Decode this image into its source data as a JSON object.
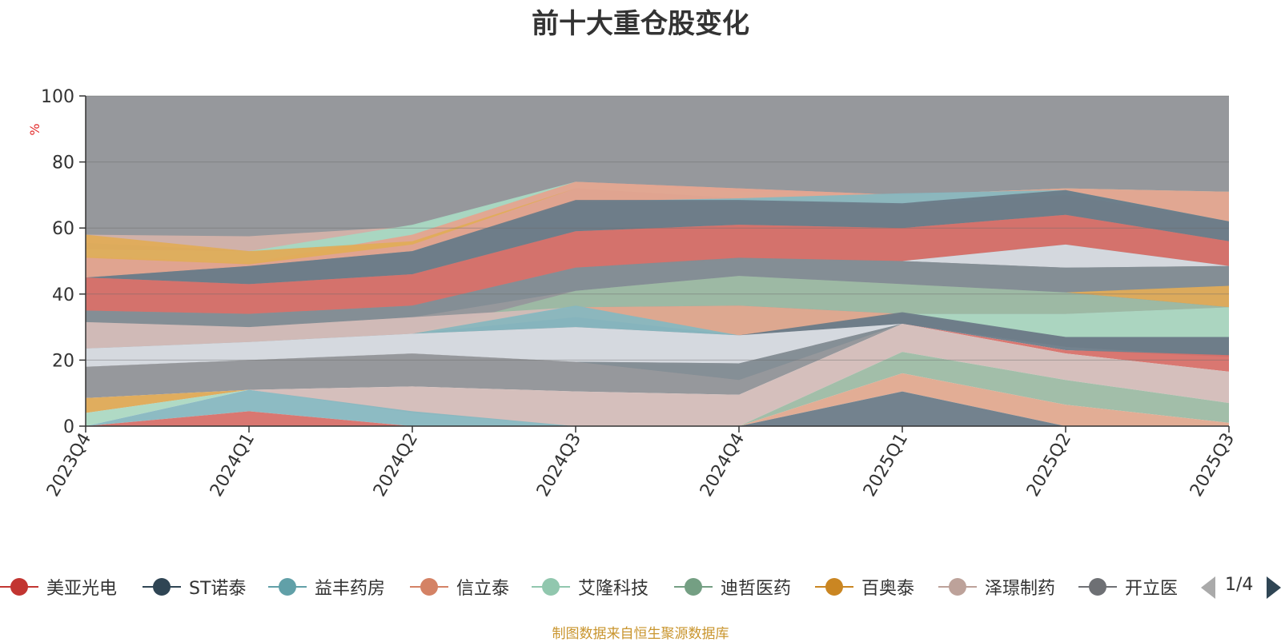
{
  "chart_data": {
    "type": "area",
    "title": "前十大重仓股变化",
    "ylabel": "%",
    "ylim": [
      0,
      100
    ],
    "yticks": [
      0,
      20,
      40,
      60,
      80,
      100
    ],
    "categories": [
      "2023Q4",
      "2024Q1",
      "2024Q2",
      "2024Q3",
      "2024Q4",
      "2025Q1",
      "2025Q2",
      "2025Q3"
    ],
    "grid": true,
    "legend_position": "bottom",
    "legend_page": "1/4",
    "areas": [
      {
        "color": "#909297",
        "lower": [
          18,
          20,
          22,
          19.5,
          14,
          31,
          24,
          21
        ],
        "upper": [
          100,
          100,
          100,
          100,
          100,
          100,
          100,
          100
        ]
      },
      {
        "color": "#d3b2aa",
        "lower": [
          55.5,
          53,
          56.5,
          73,
          70,
          69,
          71,
          70
        ],
        "upper": [
          58,
          57.5,
          60.5,
          74,
          72,
          70,
          72,
          71
        ]
      },
      {
        "color": "#a6d8c2",
        "lower": [
          51,
          49,
          55,
          72,
          69,
          68,
          70,
          62
        ],
        "upper": [
          53.5,
          53,
          61,
          74,
          71,
          70,
          72,
          71
        ]
      },
      {
        "color": "#e4a48f",
        "lower": [
          45,
          48.5,
          53,
          68,
          68,
          67,
          70,
          62
        ],
        "upper": [
          51.5,
          49.5,
          58,
          74,
          72,
          70,
          72,
          71
        ]
      },
      {
        "color": "#87b7c0",
        "lower": [
          45,
          48.5,
          53,
          68,
          68,
          67,
          70,
          62
        ],
        "upper": [
          45,
          48.5,
          53,
          68,
          69,
          70.5,
          71.5,
          62
        ]
      },
      {
        "color": "#e0ac58",
        "lower": [
          51,
          49,
          55,
          72,
          69,
          68,
          70,
          62
        ],
        "upper": [
          58,
          53,
          56,
          72,
          69,
          68,
          70,
          62
        ]
      },
      {
        "color": "#6c7b88",
        "lower": [
          45,
          43,
          46,
          59,
          61,
          60,
          64,
          56
        ],
        "upper": [
          45,
          48.5,
          53,
          68.5,
          68.5,
          67.5,
          71.5,
          62
        ]
      },
      {
        "color": "#d77069",
        "lower": [
          35,
          34,
          36.5,
          48,
          50.5,
          50,
          55,
          48.5
        ],
        "upper": [
          45,
          43,
          46,
          59,
          61,
          60,
          64,
          56
        ]
      },
      {
        "color": "#d7dbe2",
        "lower": [
          35,
          34,
          36.5,
          48,
          50.5,
          50,
          48,
          48.5
        ],
        "upper": [
          35,
          34,
          36.5,
          48,
          50.5,
          50,
          55,
          48.5
        ]
      },
      {
        "color": "#838d95",
        "lower": [
          31.5,
          30,
          33,
          41,
          45.5,
          43,
          40.5,
          36
        ],
        "upper": [
          35,
          34,
          36.5,
          48,
          51,
          50,
          48,
          48.5
        ]
      },
      {
        "color": "#e0ac58",
        "lower": [
          31.5,
          30,
          33,
          41,
          45.5,
          43,
          40.5,
          36
        ],
        "upper": [
          31.5,
          30,
          33,
          41,
          45.5,
          43,
          40.5,
          42.5
        ]
      },
      {
        "color": "#9dbaa4",
        "lower": [
          28,
          28,
          28,
          36,
          36.5,
          34,
          34,
          36
        ],
        "upper": [
          28,
          28,
          28,
          41,
          45.5,
          43,
          40.5,
          36
        ]
      },
      {
        "color": "#acd8c2",
        "lower": [
          28,
          28,
          28,
          36,
          36.5,
          34,
          27,
          27
        ],
        "upper": [
          28,
          28,
          28,
          36,
          36.5,
          34,
          34,
          36
        ]
      },
      {
        "color": "#d3bcb8",
        "lower": [
          23.5,
          25.5,
          28,
          36,
          36.5,
          34,
          34,
          36
        ],
        "upper": [
          31.5,
          30,
          33,
          36,
          36.5,
          34,
          34,
          36
        ]
      },
      {
        "color": "#e0a98f",
        "lower": [
          23.5,
          25.5,
          28,
          33,
          27.5,
          34,
          34,
          36
        ],
        "upper": [
          23.5,
          25.5,
          28,
          36,
          36.5,
          34,
          34,
          36
        ]
      },
      {
        "color": "#6c7b88",
        "lower": [
          23.5,
          25.5,
          28,
          30,
          27.5,
          31,
          23,
          21
        ],
        "upper": [
          23.5,
          25.5,
          28,
          33,
          27.5,
          34.5,
          27,
          27
        ]
      },
      {
        "color": "#87b7c0",
        "lower": [
          23.5,
          25.5,
          28,
          30,
          27.5,
          31,
          23,
          21
        ],
        "upper": [
          23.5,
          25.5,
          28,
          36.5,
          27.5,
          31,
          23,
          21
        ]
      },
      {
        "color": "#d77069",
        "lower": [
          23.5,
          25.5,
          28,
          30,
          27.5,
          31,
          22,
          16.5
        ],
        "upper": [
          23.5,
          25.5,
          28,
          30,
          27.5,
          31,
          23,
          21.5
        ]
      },
      {
        "color": "#d8dce3",
        "lower": [
          18,
          20,
          22,
          19.5,
          19,
          31,
          23,
          21
        ],
        "upper": [
          23.5,
          25.5,
          28,
          30,
          27.5,
          31,
          23,
          21
        ]
      },
      {
        "color": "#909297",
        "lower": [
          8.5,
          11,
          12,
          10.5,
          9.5,
          31,
          23,
          21
        ],
        "upper": [
          18,
          20,
          22,
          19.5,
          18,
          31,
          23,
          21
        ]
      },
      {
        "color": "#858e96",
        "lower": [
          18,
          20,
          22,
          19.5,
          14,
          31,
          23,
          21
        ],
        "upper": [
          18,
          20,
          22,
          19.5,
          19,
          31,
          23,
          21
        ]
      },
      {
        "color": "#d3bcb8",
        "lower": [
          4,
          11,
          4,
          0,
          0,
          22.5,
          14,
          7
        ],
        "upper": [
          8.5,
          11,
          12,
          10.5,
          9.5,
          31,
          22,
          16.5
        ]
      },
      {
        "color": "#9dbaa4",
        "lower": [
          0,
          0,
          0,
          0,
          0,
          16,
          6.5,
          1
        ],
        "upper": [
          0,
          0,
          0,
          0,
          0,
          22.5,
          14,
          7
        ]
      },
      {
        "color": "#e0a98f",
        "lower": [
          0,
          0,
          0,
          0,
          0,
          10.5,
          0,
          0
        ],
        "upper": [
          0,
          0,
          0,
          0,
          0,
          16,
          6.5,
          1
        ]
      },
      {
        "color": "#6c7b88",
        "lower": [
          0,
          0,
          0,
          0,
          0,
          0,
          0,
          0
        ],
        "upper": [
          0,
          0,
          0,
          0,
          0,
          10.5,
          0,
          0
        ]
      },
      {
        "color": "#e0ac58",
        "lower": [
          4,
          11,
          4,
          0,
          0,
          0,
          0,
          0
        ],
        "upper": [
          8.5,
          11,
          4,
          0,
          0,
          0,
          0,
          0
        ]
      },
      {
        "color": "#acd8c2",
        "lower": [
          0,
          11,
          4,
          0,
          0,
          0,
          0,
          0
        ],
        "upper": [
          4,
          11,
          4,
          0,
          0,
          0,
          0,
          0
        ]
      },
      {
        "color": "#87b7c0",
        "lower": [
          0,
          4.5,
          0,
          0,
          0,
          0,
          0,
          0
        ],
        "upper": [
          0,
          11,
          4.5,
          0,
          0,
          0,
          0,
          0
        ]
      },
      {
        "color": "#d77069",
        "lower": [
          0,
          0,
          0,
          0,
          0,
          0,
          0,
          0
        ],
        "upper": [
          0,
          4.5,
          0,
          0,
          0,
          0,
          0,
          0
        ]
      }
    ]
  },
  "legend": {
    "items": [
      {
        "label": "美亚光电",
        "color": "#c23531"
      },
      {
        "label": "ST诺泰",
        "color": "#2f4554"
      },
      {
        "label": "益丰药房",
        "color": "#61a0a8"
      },
      {
        "label": "信立泰",
        "color": "#d48265"
      },
      {
        "label": "艾隆科技",
        "color": "#91c7ae"
      },
      {
        "label": "迪哲医药",
        "color": "#749f83"
      },
      {
        "label": "百奥泰",
        "color": "#ca8622"
      },
      {
        "label": "泽璟制药",
        "color": "#bda29a"
      },
      {
        "label": "开立医",
        "color": "#6e7074"
      }
    ],
    "page": "1/4"
  },
  "source": "制图数据来自恒生聚源数据库"
}
